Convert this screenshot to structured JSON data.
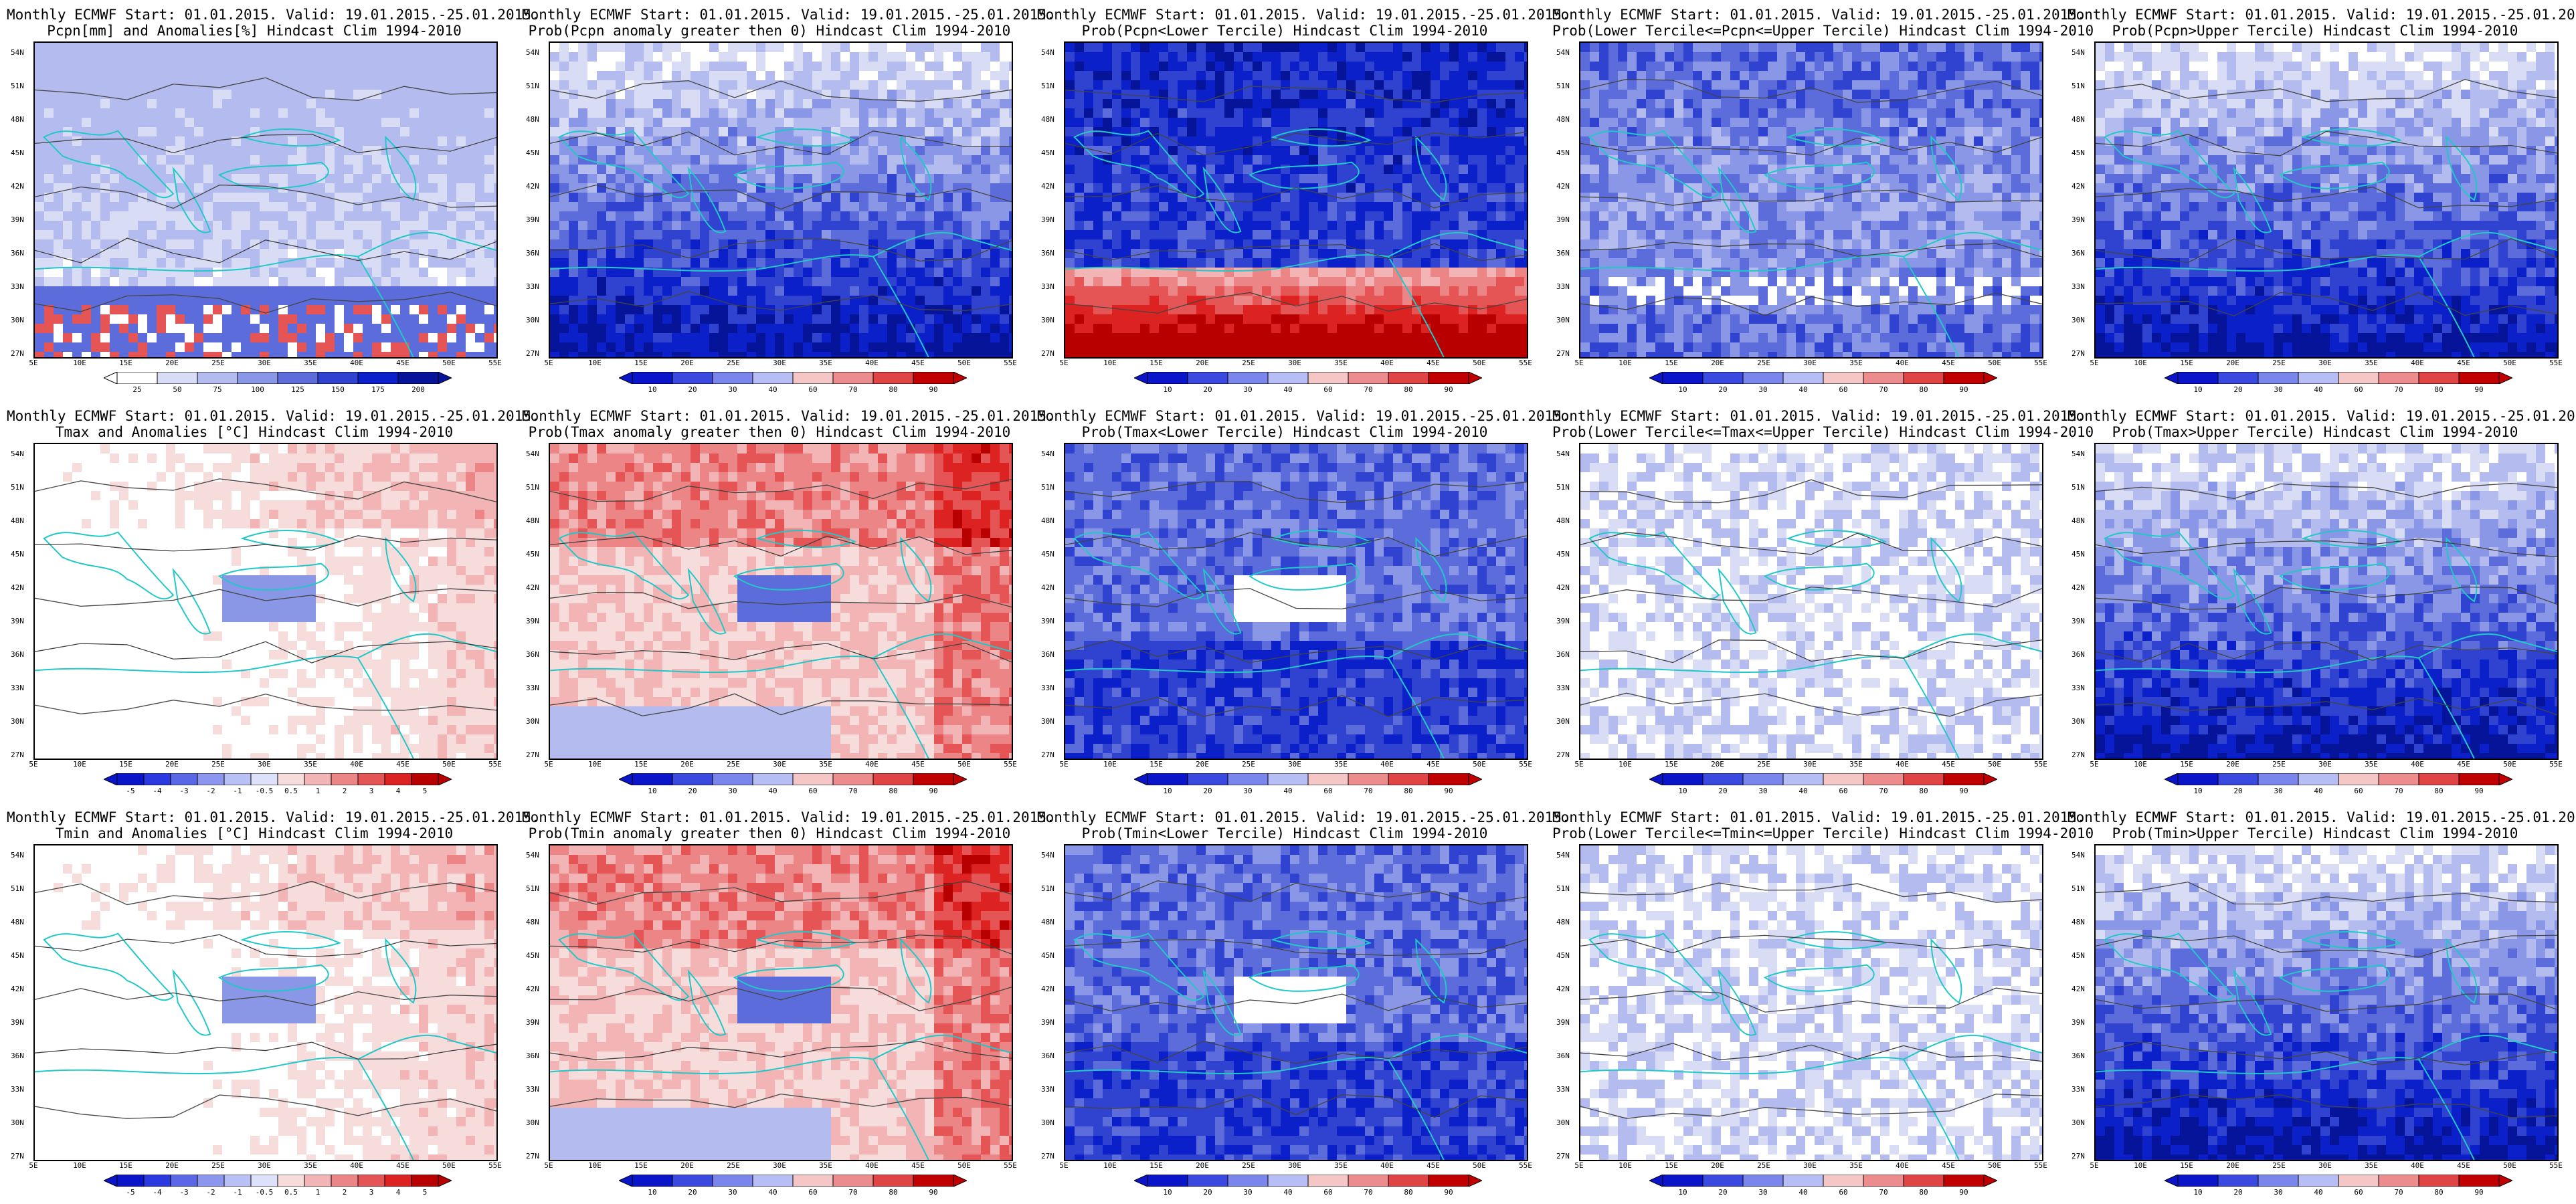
{
  "title_line1": "Monthly ECMWF Start: 01.01.2015. Valid: 19.01.2015.-25.01.2015.",
  "lat_labels": [
    "54N",
    "51N",
    "48N",
    "45N",
    "42N",
    "39N",
    "36N",
    "33N",
    "30N",
    "27N"
  ],
  "lon_labels": [
    "5E",
    "10E",
    "15E",
    "20E",
    "25E",
    "30E",
    "35E",
    "40E",
    "45E",
    "50E",
    "55E"
  ],
  "colorbars": {
    "pcpn": [
      "25",
      "50",
      "75",
      "100",
      "125",
      "150",
      "175",
      "200"
    ],
    "anom": [
      "-5",
      "-4",
      "-3",
      "-2",
      "-1",
      "-0.5",
      "0.5",
      "1",
      "2",
      "3",
      "4",
      "5"
    ],
    "prob": [
      "10",
      "20",
      "30",
      "40",
      "60",
      "70",
      "80",
      "90"
    ]
  },
  "panels": [
    {
      "id": "pcpn-anom",
      "line2": "Pcpn[mm] and Anomalies[%] Hindcast Clim 1994-2010",
      "bar": "pcpn",
      "theme": "dry-south"
    },
    {
      "id": "pcpn-prob-pos",
      "line2": "Prob(Pcpn anomaly greater then 0) Hindcast Clim 1994-2010",
      "bar": "prob",
      "theme": "blue-south"
    },
    {
      "id": "pcpn-lower",
      "line2": "Prob(Pcpn<Lower Tercile) Hindcast Clim 1994-2010",
      "bar": "prob",
      "theme": "red-south"
    },
    {
      "id": "pcpn-middle",
      "line2": "Prob(Lower Tercile<=Pcpn<=Upper Tercile) Hindcast Clim 1994-2010",
      "bar": "prob",
      "theme": "blue-mix"
    },
    {
      "id": "pcpn-upper",
      "line2": "Prob(Pcpn>Upper Tercile) Hindcast Clim 1994-2010",
      "bar": "prob",
      "theme": "blue-south"
    },
    {
      "id": "tmax-anom",
      "line2": "Tmax and Anomalies [°C] Hindcast Clim 1994-2010",
      "bar": "anom",
      "theme": "warm-east"
    },
    {
      "id": "tmax-prob-pos",
      "line2": "Prob(Tmax anomaly greater then 0) Hindcast Clim 1994-2010",
      "bar": "prob",
      "theme": "warm-strong"
    },
    {
      "id": "tmax-lower",
      "line2": "Prob(Tmax<Lower Tercile) Hindcast Clim 1994-2010",
      "bar": "prob",
      "theme": "blue-all"
    },
    {
      "id": "tmax-middle",
      "line2": "Prob(Lower Tercile<=Tmax<=Upper Tercile) Hindcast Clim 1994-2010",
      "bar": "prob",
      "theme": "light-mix"
    },
    {
      "id": "tmax-upper",
      "line2": "Prob(Tmax>Upper Tercile) Hindcast Clim 1994-2010",
      "bar": "prob",
      "theme": "blue-south"
    },
    {
      "id": "tmin-anom",
      "line2": "Tmin and Anomalies [°C] Hindcast Clim 1994-2010",
      "bar": "anom",
      "theme": "warm-east"
    },
    {
      "id": "tmin-prob-pos",
      "line2": "Prob(Tmin anomaly greater then 0) Hindcast Clim 1994-2010",
      "bar": "prob",
      "theme": "warm-strong"
    },
    {
      "id": "tmin-lower",
      "line2": "Prob(Tmin<Lower Tercile) Hindcast Clim 1994-2010",
      "bar": "prob",
      "theme": "blue-all"
    },
    {
      "id": "tmin-middle",
      "line2": "Prob(Lower Tercile<=Tmin<=Upper Tercile) Hindcast Clim 1994-2010",
      "bar": "prob",
      "theme": "light-mix"
    },
    {
      "id": "tmin-upper",
      "line2": "Prob(Tmin>Upper Tercile) Hindcast Clim 1994-2010",
      "bar": "prob",
      "theme": "blue-south"
    }
  ],
  "colors": {
    "pcpn": [
      "#ffffff",
      "#d8dcf5",
      "#b4bcef",
      "#8a97e6",
      "#5c6ddb",
      "#3043d0",
      "#0b20c8",
      "#06149a"
    ],
    "anom": [
      "#0a14c8",
      "#2a3ae0",
      "#5a68e8",
      "#8c96ef",
      "#b8c0f5",
      "#dde1fa",
      "#f7dcdc",
      "#f2b4b4",
      "#ec8585",
      "#e65555",
      "#dd2222",
      "#b80000"
    ],
    "prob": [
      "#0a14c8",
      "#3a4ae0",
      "#7a86ec",
      "#b6bef5",
      "#f5c6c6",
      "#ec8c8c",
      "#e04444",
      "#c00000"
    ],
    "coast": "#22c8c8",
    "contour": "#444444"
  }
}
